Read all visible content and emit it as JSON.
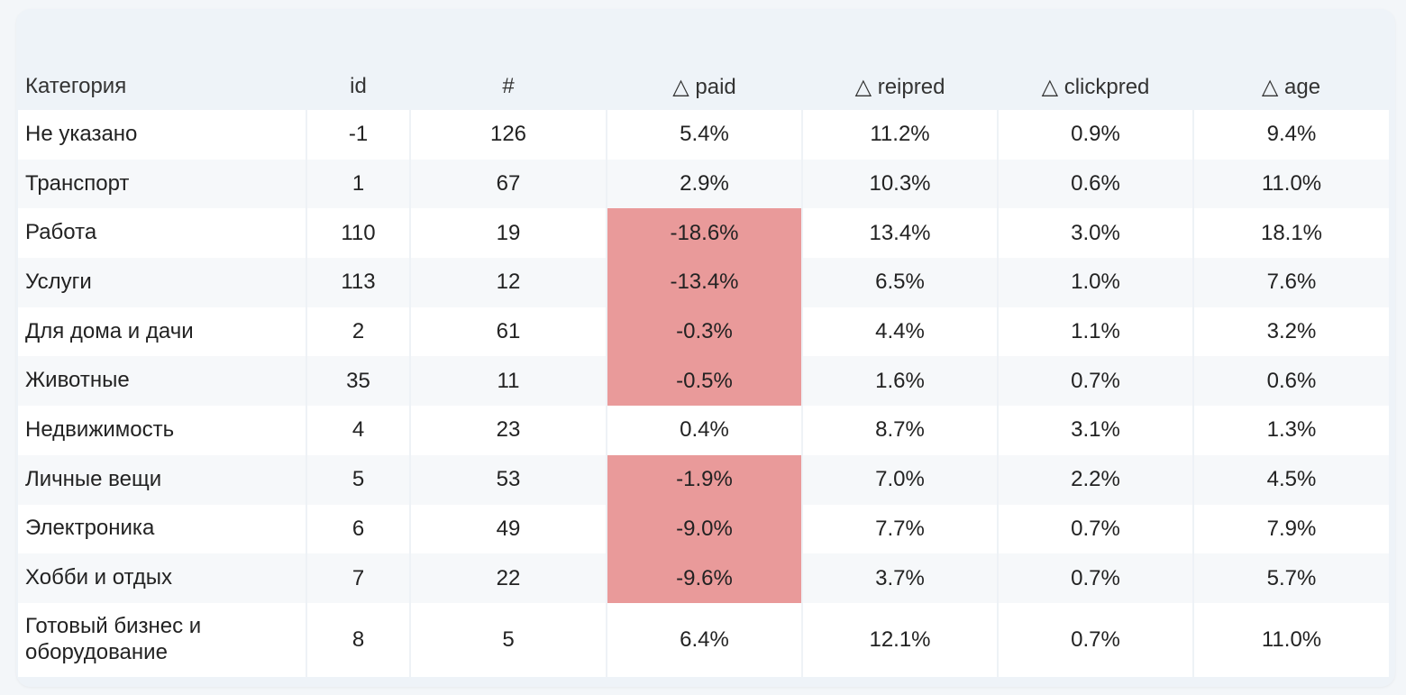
{
  "table": {
    "headers": [
      "Категория",
      "id",
      "#",
      "△ paid",
      "△ reipred",
      "△ clickpred",
      "△ age"
    ],
    "rows": [
      {
        "cat": "Не указано",
        "id": "-1",
        "n": "126",
        "paid": "5.4%",
        "reipred": "11.2%",
        "clickpred": "0.9%",
        "age": "9.4%",
        "paid_negative": false
      },
      {
        "cat": "Транспорт",
        "id": "1",
        "n": "67",
        "paid": "2.9%",
        "reipred": "10.3%",
        "clickpred": "0.6%",
        "age": "11.0%",
        "paid_negative": false
      },
      {
        "cat": "Работа",
        "id": "110",
        "n": "19",
        "paid": "-18.6%",
        "reipred": "13.4%",
        "clickpred": "3.0%",
        "age": "18.1%",
        "paid_negative": true
      },
      {
        "cat": "Услуги",
        "id": "113",
        "n": "12",
        "paid": "-13.4%",
        "reipred": "6.5%",
        "clickpred": "1.0%",
        "age": "7.6%",
        "paid_negative": true
      },
      {
        "cat": "Для дома и дачи",
        "id": "2",
        "n": "61",
        "paid": "-0.3%",
        "reipred": "4.4%",
        "clickpred": "1.1%",
        "age": "3.2%",
        "paid_negative": true
      },
      {
        "cat": "Животные",
        "id": "35",
        "n": "11",
        "paid": "-0.5%",
        "reipred": "1.6%",
        "clickpred": "0.7%",
        "age": "0.6%",
        "paid_negative": true
      },
      {
        "cat": "Недвижимость",
        "id": "4",
        "n": "23",
        "paid": "0.4%",
        "reipred": "8.7%",
        "clickpred": "3.1%",
        "age": "1.3%",
        "paid_negative": false
      },
      {
        "cat": "Личные вещи",
        "id": "5",
        "n": "53",
        "paid": "-1.9%",
        "reipred": "7.0%",
        "clickpred": "2.2%",
        "age": "4.5%",
        "paid_negative": true
      },
      {
        "cat": "Электроника",
        "id": "6",
        "n": "49",
        "paid": "-9.0%",
        "reipred": "7.7%",
        "clickpred": "0.7%",
        "age": "7.9%",
        "paid_negative": true
      },
      {
        "cat": "Хобби и отдых",
        "id": "7",
        "n": "22",
        "paid": "-9.6%",
        "reipred": "3.7%",
        "clickpred": "0.7%",
        "age": "5.7%",
        "paid_negative": true
      },
      {
        "cat": "Готовый бизнес  и\nоборудование",
        "id": "8",
        "n": "5",
        "paid": "6.4%",
        "reipred": "12.1%",
        "clickpred": "0.7%",
        "age": "11.0%",
        "paid_negative": false
      }
    ]
  },
  "colors": {
    "negative_highlight": "#e99a9a",
    "card_background": "#eef3f8",
    "row_white": "#ffffff",
    "row_alt": "#f6f8fa"
  }
}
